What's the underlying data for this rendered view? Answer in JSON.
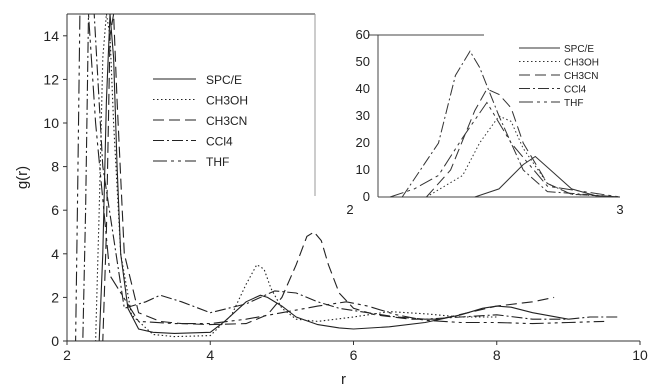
{
  "chart_data": [
    {
      "type": "line",
      "xlabel": "r",
      "ylabel": "g(r)",
      "xlim": [
        2,
        10
      ],
      "ylim": [
        0,
        15
      ],
      "xticks": [
        2,
        4,
        6,
        8,
        10
      ],
      "yticks": [
        0,
        2,
        4,
        6,
        8,
        10,
        12,
        14
      ],
      "legend_position": "upper-middle",
      "grid": false,
      "series": [
        {
          "name": "SPC/E",
          "dash": "",
          "x": [
            2.0,
            2.45,
            2.5,
            2.55,
            2.6,
            2.65,
            2.7,
            2.75,
            2.85,
            3.0,
            3.2,
            3.5,
            4.0,
            4.2,
            4.5,
            4.7,
            4.8,
            5.0,
            5.2,
            5.5,
            5.8,
            6.0,
            6.5,
            7.0,
            7.5,
            7.8,
            8.0,
            8.2,
            8.5,
            9.0
          ],
          "y": [
            0,
            0,
            4.0,
            11.0,
            15.0,
            13.0,
            8.0,
            4.0,
            1.5,
            0.55,
            0.4,
            0.35,
            0.4,
            0.9,
            1.8,
            2.1,
            2.0,
            1.6,
            1.1,
            0.75,
            0.6,
            0.55,
            0.65,
            0.85,
            1.2,
            1.5,
            1.6,
            1.55,
            1.3,
            1.0
          ]
        },
        {
          "name": "CH3OH",
          "dash": "1.5,2.5",
          "x": [
            2.0,
            2.4,
            2.45,
            2.5,
            2.55,
            2.6,
            2.65,
            2.75,
            2.9,
            3.2,
            3.5,
            4.0,
            4.3,
            4.5,
            4.65,
            4.75,
            4.85,
            5.0,
            5.2,
            5.5,
            6.0,
            6.5,
            7.0,
            7.5,
            8.0
          ],
          "y": [
            0,
            0,
            6.0,
            13.0,
            15.0,
            14.0,
            10.0,
            4.0,
            1.2,
            0.3,
            0.2,
            0.25,
            1.2,
            2.6,
            3.5,
            3.3,
            2.4,
            1.5,
            1.0,
            0.9,
            1.1,
            1.35,
            1.25,
            1.1,
            1.1
          ]
        },
        {
          "name": "CH3CN",
          "dash": "11,5",
          "x": [
            2.0,
            2.5,
            2.55,
            2.6,
            2.65,
            2.7,
            2.8,
            3.0,
            3.3,
            3.6,
            4.0,
            4.5,
            4.8,
            5.0,
            5.2,
            5.35,
            5.45,
            5.55,
            5.65,
            5.8,
            6.0,
            6.3,
            6.8,
            7.2,
            7.6,
            8.0,
            8.5,
            8.8
          ],
          "y": [
            0,
            0,
            5.0,
            14.0,
            15.0,
            11.0,
            4.0,
            1.3,
            0.9,
            0.8,
            0.75,
            0.8,
            1.2,
            2.0,
            3.5,
            4.8,
            5.0,
            4.6,
            3.5,
            2.2,
            1.5,
            1.2,
            1.0,
            1.0,
            1.3,
            1.6,
            1.8,
            2.0
          ]
        },
        {
          "name": "CCl4",
          "dash": "11,3,2,3",
          "x": [
            2.0,
            2.22,
            2.26,
            2.3,
            2.34,
            2.38,
            2.5,
            2.8,
            3.1,
            3.3,
            3.6,
            4.0,
            4.5,
            4.9,
            5.2,
            5.5,
            5.8,
            6.2,
            6.6,
            7.0,
            7.5,
            8.0,
            8.5,
            9.0,
            9.3,
            9.7
          ],
          "y": [
            0,
            0,
            6.0,
            15.0,
            15.0,
            15.0,
            8.0,
            1.5,
            1.8,
            2.1,
            1.8,
            1.3,
            1.7,
            2.3,
            2.2,
            1.8,
            1.5,
            1.3,
            1.1,
            1.0,
            1.1,
            1.2,
            1.0,
            1.0,
            1.1,
            1.1
          ]
        },
        {
          "name": "THF",
          "dash": "14,4,3,4,3,4",
          "x": [
            2.0,
            2.12,
            2.15,
            2.18,
            2.22,
            2.3,
            2.4,
            2.6,
            3.0,
            3.5,
            4.0,
            4.5,
            5.0,
            5.5,
            5.9,
            6.2,
            6.6,
            7.0,
            7.5,
            8.0,
            8.5,
            9.0,
            9.5
          ],
          "y": [
            0,
            0,
            7.0,
            15.0,
            15.0,
            15.0,
            10.0,
            3.0,
            0.9,
            0.8,
            0.8,
            1.0,
            1.3,
            1.6,
            1.8,
            1.6,
            1.2,
            0.95,
            0.85,
            0.85,
            0.8,
            0.85,
            0.9
          ]
        }
      ]
    },
    {
      "type": "line",
      "xlim": [
        2,
        3
      ],
      "ylim": [
        0,
        60
      ],
      "xticks": [
        2,
        3
      ],
      "yticks": [
        0,
        10,
        20,
        30,
        40,
        50,
        60
      ],
      "legend_position": "right",
      "grid": false,
      "series": [
        {
          "name": "SPC/E",
          "dash": "",
          "x": [
            2.4,
            2.5,
            2.6,
            2.65,
            2.7,
            2.8,
            2.9,
            3.0
          ],
          "y": [
            0,
            3,
            12,
            15,
            11,
            3,
            0.5,
            0
          ]
        },
        {
          "name": "CH3OH",
          "dash": "1.5,2.5",
          "x": [
            2.2,
            2.35,
            2.42,
            2.5,
            2.55,
            2.6,
            2.7,
            2.8,
            3.0
          ],
          "y": [
            0,
            8,
            20,
            30,
            28,
            18,
            5,
            1,
            0
          ]
        },
        {
          "name": "CH3CN",
          "dash": "11,5",
          "x": [
            2.2,
            2.3,
            2.4,
            2.45,
            2.5,
            2.55,
            2.6,
            2.7,
            2.8,
            3.0
          ],
          "y": [
            0,
            10,
            32,
            40,
            38,
            33,
            20,
            5,
            1,
            0
          ]
        },
        {
          "name": "CCl4",
          "dash": "11,3,2,3",
          "x": [
            2.1,
            2.25,
            2.32,
            2.38,
            2.42,
            2.5,
            2.6,
            2.7,
            3.0
          ],
          "y": [
            0,
            20,
            45,
            54,
            48,
            30,
            10,
            2,
            0
          ]
        },
        {
          "name": "THF",
          "dash": "14,4,3,4,3,4",
          "x": [
            2.05,
            2.15,
            2.25,
            2.35,
            2.45,
            2.55,
            2.7,
            3.0
          ],
          "y": [
            0,
            3,
            8,
            22,
            35,
            20,
            4,
            0
          ]
        }
      ]
    }
  ]
}
